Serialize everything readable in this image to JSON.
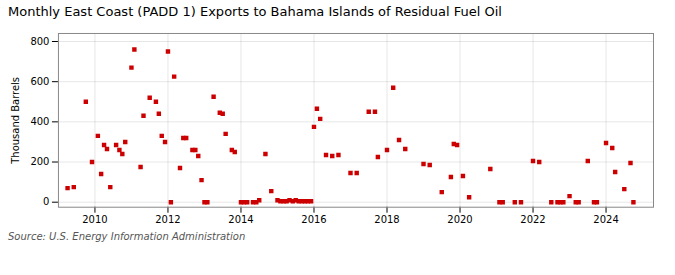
{
  "chart_data": {
    "type": "scatter",
    "title": "Monthly East Coast (PADD 1) Exports to Bahama Islands of Residual Fuel Oil",
    "ylabel": "Thousand Barrels",
    "caption": "Source: U.S. Energy Information Administration",
    "color": "#cc0000",
    "marker": "square",
    "grid": true,
    "xlim": [
      2009.0,
      2025.3
    ],
    "xticks": [
      2010,
      2012,
      2014,
      2016,
      2018,
      2020,
      2022,
      2024
    ],
    "ylim": [
      -25,
      840
    ],
    "yticks": [
      0,
      200,
      400,
      600,
      800
    ],
    "x": [
      2009.25,
      2009.42,
      2009.75,
      2009.92,
      2010.08,
      2010.17,
      2010.25,
      2010.33,
      2010.42,
      2010.58,
      2010.67,
      2010.75,
      2010.83,
      2011.0,
      2011.08,
      2011.25,
      2011.33,
      2011.5,
      2011.67,
      2011.75,
      2011.83,
      2011.92,
      2012.0,
      2012.08,
      2012.17,
      2012.33,
      2012.42,
      2012.5,
      2012.67,
      2012.75,
      2012.83,
      2012.92,
      2013.0,
      2013.08,
      2013.25,
      2013.42,
      2013.5,
      2013.58,
      2013.75,
      2013.83,
      2014.0,
      2014.08,
      2014.17,
      2014.33,
      2014.42,
      2014.5,
      2014.67,
      2014.83,
      2015.0,
      2015.08,
      2015.17,
      2015.25,
      2015.33,
      2015.42,
      2015.5,
      2015.58,
      2015.67,
      2015.75,
      2015.83,
      2015.92,
      2016.0,
      2016.08,
      2016.17,
      2016.33,
      2016.5,
      2016.67,
      2017.0,
      2017.17,
      2017.5,
      2017.67,
      2017.75,
      2018.0,
      2018.17,
      2018.33,
      2018.5,
      2019.0,
      2019.17,
      2019.5,
      2019.75,
      2019.83,
      2019.92,
      2020.08,
      2020.25,
      2020.83,
      2021.08,
      2021.17,
      2021.5,
      2021.67,
      2022.0,
      2022.17,
      2022.5,
      2022.67,
      2022.75,
      2022.83,
      2023.0,
      2023.17,
      2023.25,
      2023.5,
      2023.67,
      2023.75,
      2024.0,
      2024.17,
      2024.25,
      2024.5,
      2024.67,
      2024.75
    ],
    "values": [
      70,
      75,
      500,
      200,
      330,
      140,
      285,
      265,
      75,
      285,
      260,
      240,
      300,
      670,
      760,
      175,
      430,
      520,
      500,
      440,
      330,
      300,
      750,
      0,
      625,
      170,
      320,
      320,
      260,
      260,
      230,
      110,
      0,
      0,
      525,
      445,
      440,
      340,
      260,
      250,
      0,
      0,
      0,
      0,
      0,
      10,
      240,
      55,
      10,
      5,
      5,
      5,
      10,
      5,
      10,
      5,
      5,
      5,
      5,
      5,
      375,
      465,
      415,
      235,
      230,
      235,
      145,
      145,
      450,
      450,
      225,
      260,
      570,
      310,
      265,
      190,
      185,
      50,
      125,
      290,
      285,
      130,
      25,
      165,
      0,
      0,
      0,
      0,
      205,
      200,
      0,
      0,
      0,
      0,
      30,
      0,
      0,
      205,
      0,
      0,
      295,
      270,
      150,
      65,
      195,
      0
    ]
  }
}
